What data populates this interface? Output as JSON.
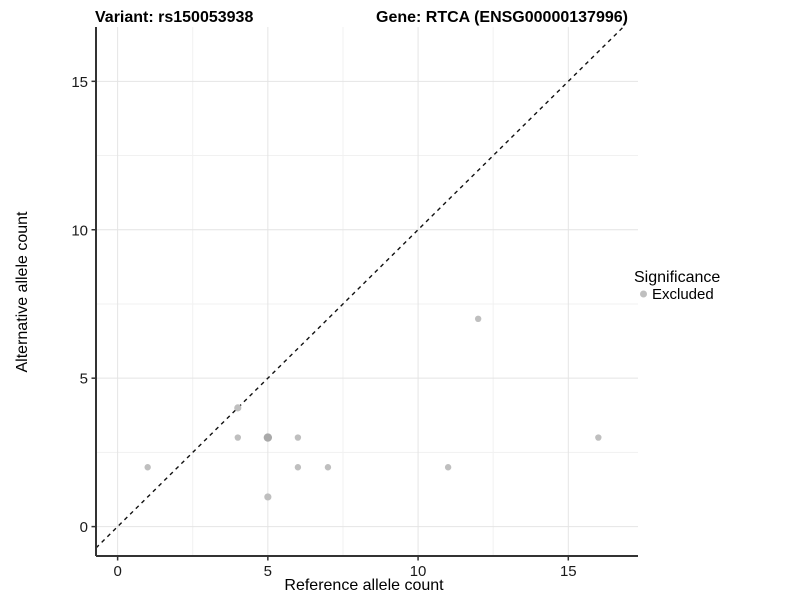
{
  "header": {
    "title_left": "Variant: rs150053938",
    "title_right": "Gene: RTCA (ENSG00000137996)"
  },
  "legend": {
    "title": "Significance",
    "items": [
      {
        "label": "Excluded",
        "color": "#bfbfbf"
      }
    ],
    "position": "right"
  },
  "chart_data": {
    "type": "scatter",
    "title_left": "Variant: rs150053938",
    "title_right": "Gene: RTCA (ENSG00000137996)",
    "xlabel": "Reference allele count",
    "ylabel": "Alternative allele count",
    "xlim": [
      -0.72,
      17.32
    ],
    "ylim": [
      -0.99,
      16.83
    ],
    "xticks": [
      0,
      5,
      10,
      15
    ],
    "yticks": [
      0,
      5,
      10,
      15
    ],
    "xticks_minor": [
      2.5,
      7.5,
      12.5
    ],
    "yticks_minor": [
      2.5,
      7.5,
      12.5
    ],
    "grid": "major+minor",
    "identity_line": {
      "slope": 1,
      "intercept": 0,
      "style": "dashed",
      "color": "#111111"
    },
    "series": [
      {
        "name": "Excluded",
        "color": "#bfbfbf",
        "points": [
          {
            "x": 1,
            "y": 2
          },
          {
            "x": 4,
            "y": 3
          },
          {
            "x": 4,
            "y": 4,
            "r": 3.6
          },
          {
            "x": 5,
            "y": 1,
            "r": 3.6
          },
          {
            "x": 5,
            "y": 3,
            "r": 4.2,
            "color": "#a9a9a9"
          },
          {
            "x": 6,
            "y": 2
          },
          {
            "x": 6,
            "y": 3
          },
          {
            "x": 7,
            "y": 2
          },
          {
            "x": 11,
            "y": 2
          },
          {
            "x": 12,
            "y": 7
          },
          {
            "x": 16,
            "y": 3
          }
        ]
      }
    ]
  },
  "colors": {
    "background": "#ffffff",
    "grid_major": "#e4e4e4",
    "grid_minor": "#f1f1f1",
    "axis_line": "#333333",
    "tick_mark": "#333333",
    "point_default": "#bfbfbf",
    "text": "#000000"
  }
}
